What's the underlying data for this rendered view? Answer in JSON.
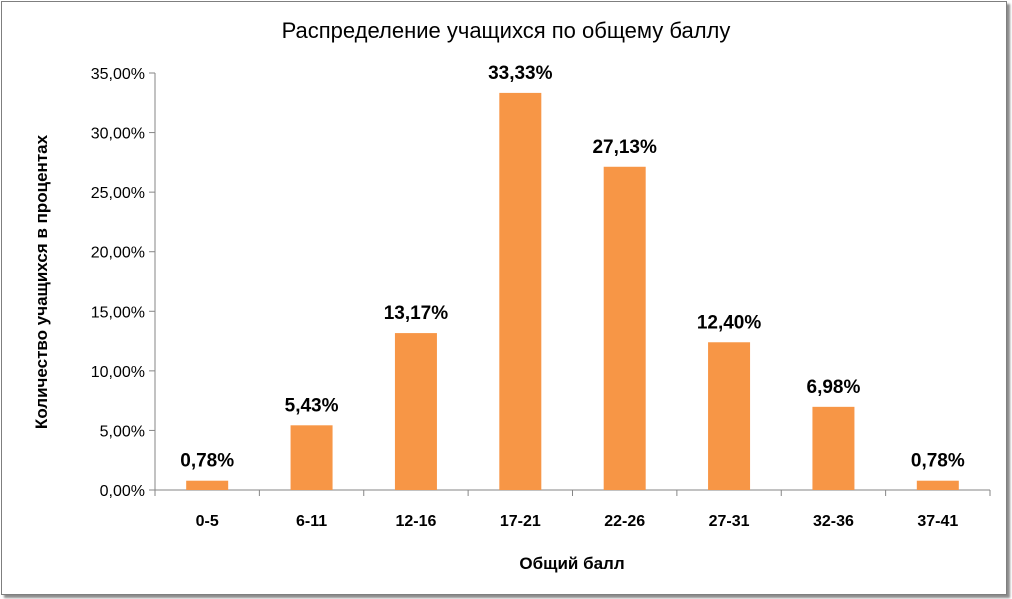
{
  "chart_data": {
    "type": "bar",
    "title": "Распределение учащихся по общему баллу",
    "xlabel": "Общий балл",
    "ylabel": "Количество учащихся в процентах",
    "categories": [
      "0-5",
      "6-11",
      "12-16",
      "17-21",
      "22-26",
      "27-31",
      "32-36",
      "37-41"
    ],
    "values": [
      0.78,
      5.43,
      13.17,
      33.33,
      27.13,
      12.4,
      6.98,
      0.78
    ],
    "data_labels": [
      "0,78%",
      "5,43%",
      "13,17%",
      "33,33%",
      "27,13%",
      "12,40%",
      "6,98%",
      "0,78%"
    ],
    "y_ticks": [
      0,
      5,
      10,
      15,
      20,
      25,
      30,
      35
    ],
    "y_tick_labels": [
      "0,00%",
      "5,00%",
      "10,00%",
      "15,00%",
      "20,00%",
      "25,00%",
      "30,00%",
      "35,00%"
    ],
    "ylim": [
      0,
      35
    ],
    "grid": false,
    "legend": "none",
    "bar_color": "#f79646"
  }
}
